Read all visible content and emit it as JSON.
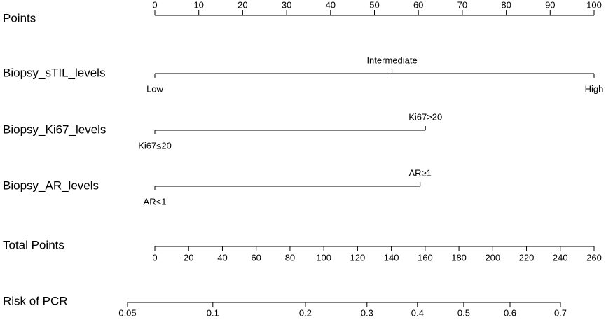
{
  "chart_data": {
    "type": "nomogram",
    "points_axis": {
      "label": "Points",
      "xlim": [
        0,
        100
      ],
      "xticks": [
        0,
        10,
        20,
        30,
        40,
        50,
        60,
        70,
        80,
        90,
        100
      ]
    },
    "variables": [
      {
        "name": "Biopsy_sTIL_levels",
        "levels": [
          "Low",
          "Intermediate",
          "High"
        ],
        "points": [
          0,
          54,
          100
        ]
      },
      {
        "name": "Biopsy_Ki67_levels",
        "levels": [
          "Ki67≤20",
          "Ki67>20"
        ],
        "points": [
          0,
          61.6
        ]
      },
      {
        "name": "Biopsy_AR_levels",
        "levels": [
          "AR<1",
          "AR≥1"
        ],
        "points": [
          0,
          60.4
        ]
      }
    ],
    "total_points": {
      "label": "Total Points",
      "xlim": [
        0,
        260
      ],
      "xticks": [
        0,
        20,
        40,
        60,
        80,
        100,
        120,
        140,
        160,
        180,
        200,
        220,
        240,
        260
      ]
    },
    "risk": {
      "label": "Risk of PCR",
      "scale": "logit",
      "xlim": [
        0.05,
        0.7
      ],
      "xticks": [
        0.05,
        0.1,
        0.2,
        0.3,
        0.4,
        0.5,
        0.6,
        0.7
      ]
    },
    "color": "#000000"
  }
}
